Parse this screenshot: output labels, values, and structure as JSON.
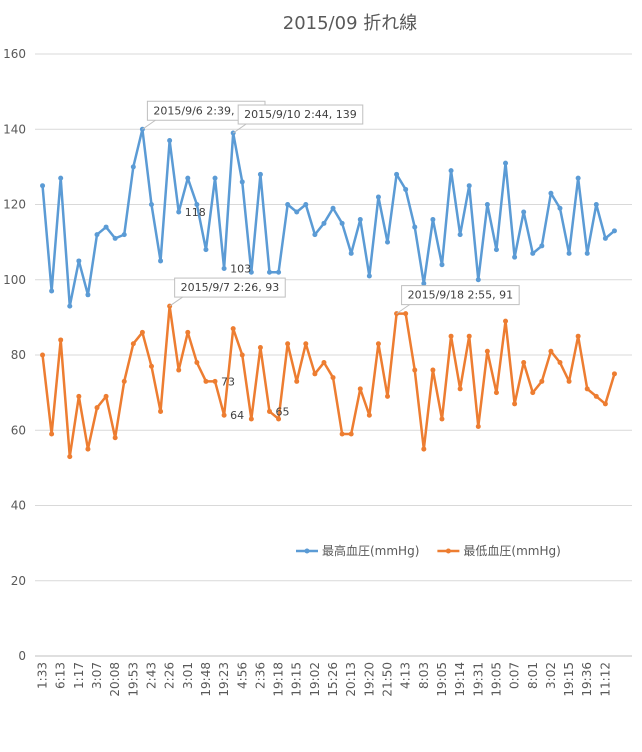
{
  "chart_data": {
    "type": "line",
    "title": "2015/09 折れ線",
    "categories": [
      "1:33",
      null,
      "6:13",
      null,
      "1:17",
      null,
      "3:07",
      null,
      "20:08",
      null,
      "19:53",
      null,
      "2:43",
      null,
      "2:26",
      null,
      "3:01",
      null,
      "19:48",
      null,
      "19:23",
      null,
      "4:56",
      null,
      "2:36",
      null,
      "19:18",
      null,
      "19:15",
      null,
      "19:02",
      null,
      "15:26",
      null,
      "20:13",
      null,
      "19:20",
      null,
      "21:50",
      null,
      "4:13",
      null,
      "8:03",
      null,
      "19:05",
      null,
      "19:14",
      null,
      "19:31",
      null,
      "19:05",
      null,
      "0:07",
      null,
      "8:01",
      null,
      "3:02",
      null,
      "19:15",
      null,
      "19:36",
      null,
      "11:12",
      null
    ],
    "series": [
      {
        "name": "最高血圧(mmHg)",
        "color": "#5b9bd5",
        "values": [
          125,
          97,
          127,
          93,
          105,
          96,
          112,
          114,
          111,
          112,
          130,
          140,
          120,
          105,
          137,
          118,
          127,
          120,
          108,
          127,
          103,
          139,
          126,
          102,
          128,
          102,
          102,
          120,
          118,
          120,
          112,
          115,
          119,
          115,
          107,
          116,
          101,
          122,
          110,
          128,
          124,
          114,
          99,
          116,
          104,
          129,
          112,
          125,
          100,
          120,
          108,
          131,
          106,
          118,
          107,
          109,
          123,
          119,
          107,
          127,
          107,
          120,
          111,
          113
        ],
        "labeled": [
          15,
          20
        ]
      },
      {
        "name": "最低血圧(mmHg)",
        "color": "#ed7d31",
        "values": [
          80,
          59,
          84,
          53,
          69,
          55,
          66,
          69,
          58,
          73,
          83,
          86,
          77,
          65,
          93,
          76,
          86,
          78,
          73,
          73,
          64,
          87,
          80,
          63,
          82,
          65,
          63,
          83,
          73,
          83,
          75,
          78,
          74,
          59,
          59,
          71,
          64,
          83,
          69,
          91,
          91,
          76,
          55,
          76,
          63,
          85,
          71,
          85,
          61,
          81,
          70,
          89,
          67,
          78,
          70,
          73,
          81,
          78,
          73,
          85,
          71,
          69,
          67,
          75
        ],
        "labeled": [
          19,
          20,
          25
        ]
      }
    ],
    "annotations": [
      {
        "text": "2015/9/6 2:39, 140",
        "series": 0,
        "index": 11
      },
      {
        "text": "2015/9/10 2:44, 139",
        "series": 0,
        "index": 21
      },
      {
        "text": "2015/9/7 2:26, 93",
        "series": 1,
        "index": 14
      },
      {
        "text": "2015/9/18 2:55, 91",
        "series": 1,
        "index": 39
      }
    ],
    "ylim": [
      0,
      160
    ],
    "yticks": [
      0,
      20,
      40,
      60,
      80,
      100,
      120,
      140,
      160
    ],
    "grid": true,
    "legend": "center"
  }
}
